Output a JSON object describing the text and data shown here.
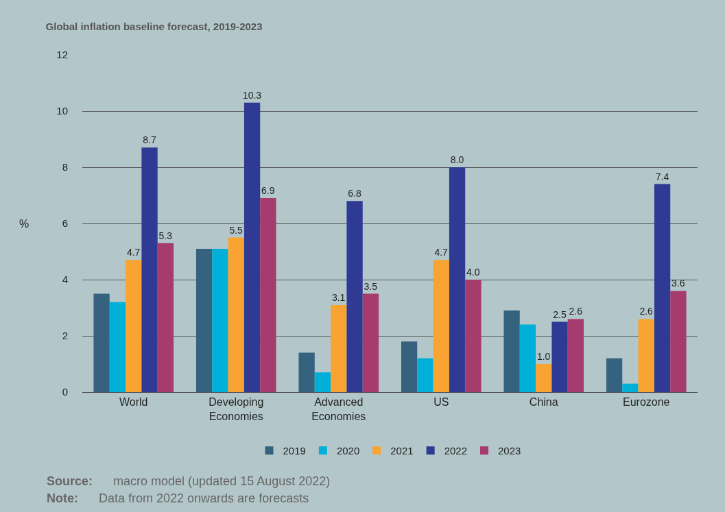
{
  "chart_data": {
    "type": "bar",
    "title": "Global inflation baseline forecast, 2019-2023",
    "ylabel": "%",
    "categories": [
      "World",
      "Developing\nEconomies",
      "Advanced\nEconomies",
      "US",
      "China",
      "Eurozone"
    ],
    "series": [
      {
        "name": "2019",
        "color": "#35637f",
        "values": [
          3.5,
          5.1,
          1.4,
          1.8,
          2.9,
          1.2
        ]
      },
      {
        "name": "2020",
        "color": "#00b0d8",
        "values": [
          3.2,
          5.1,
          0.7,
          1.2,
          2.4,
          0.3
        ]
      },
      {
        "name": "2021",
        "color": "#f9a432",
        "values": [
          4.7,
          5.5,
          3.1,
          4.7,
          1.0,
          2.6
        ],
        "value_labels": [
          "4.7",
          "5.5",
          "3.1",
          "4.7",
          "1.0",
          "2.6"
        ]
      },
      {
        "name": "2022",
        "color": "#2e3a94",
        "values": [
          8.7,
          10.3,
          6.8,
          8.0,
          2.5,
          7.4
        ],
        "value_labels": [
          "8.7",
          "10.3",
          "6.8",
          "8.0",
          "2.5",
          "7.4"
        ]
      },
      {
        "name": "2023",
        "color": "#a63b6e",
        "values": [
          5.3,
          6.9,
          3.5,
          4.0,
          2.6,
          3.6
        ],
        "value_labels": [
          "5.3",
          "6.9",
          "3.5",
          "4.0",
          "2.6",
          "3.6"
        ]
      }
    ],
    "ylim": [
      0,
      12
    ],
    "yticks": [
      0,
      2,
      4,
      6,
      8,
      10,
      12
    ],
    "grid": "y",
    "legend": "bottom",
    "annotations": [
      "Source: macro model (updated 15 August 2022)",
      "Note: Data from 2022 onwards are forecasts"
    ]
  }
}
